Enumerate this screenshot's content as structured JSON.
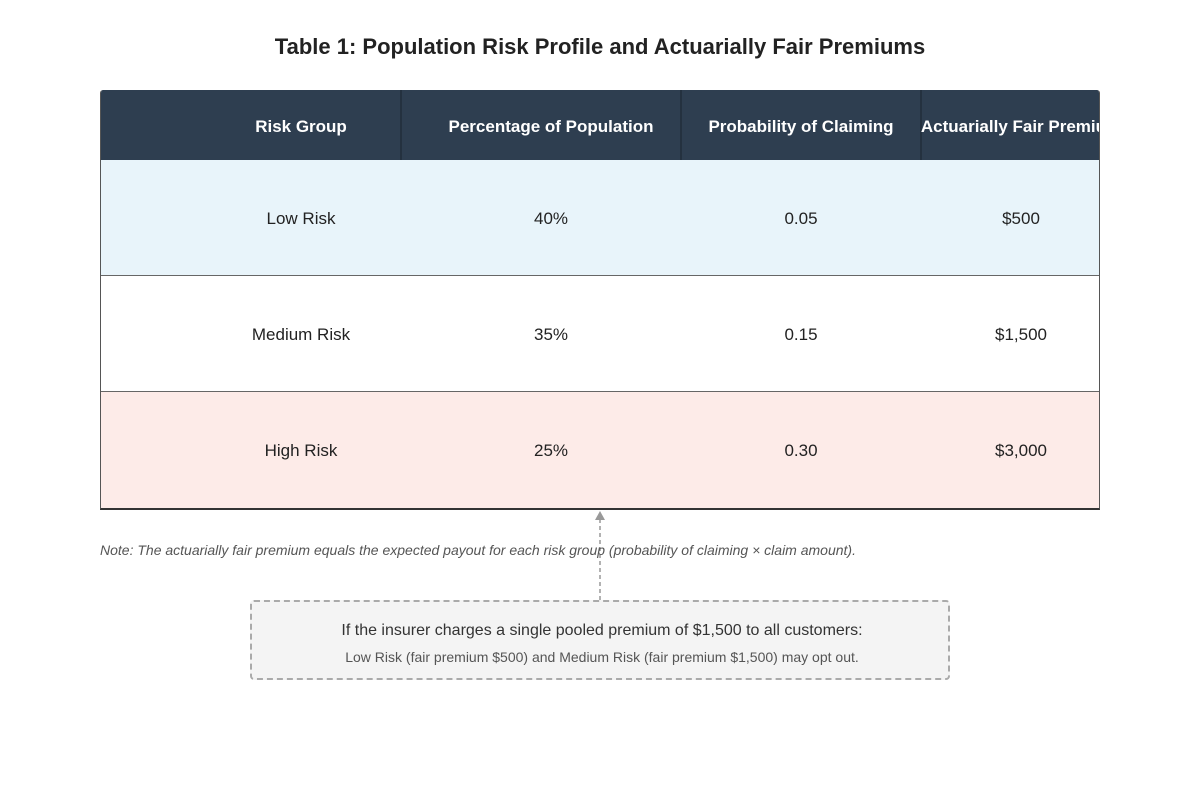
{
  "title": "Table 1: Population Risk Profile and Actuarially Fair Premiums",
  "table": {
    "headers": [
      "Risk Group",
      "Percentage of Population",
      "Probability of Claiming",
      "Actuarially Fair Premium"
    ],
    "rows": [
      [
        "Low Risk",
        "40%",
        "0.05",
        "$500"
      ],
      [
        "Medium Risk",
        "35%",
        "0.15",
        "$1,500"
      ],
      [
        "High Risk",
        "25%",
        "0.30",
        "$3,000"
      ]
    ]
  },
  "note": "Note: The actuarially fair premium equals the expected payout for each risk group (probability of claiming × claim amount).",
  "callout": {
    "line1": "If the insurer charges a single pooled premium of $1,500 to all customers:",
    "line2": "Low Risk (fair premium $500) and Medium Risk (fair premium $1,500) may opt out."
  }
}
